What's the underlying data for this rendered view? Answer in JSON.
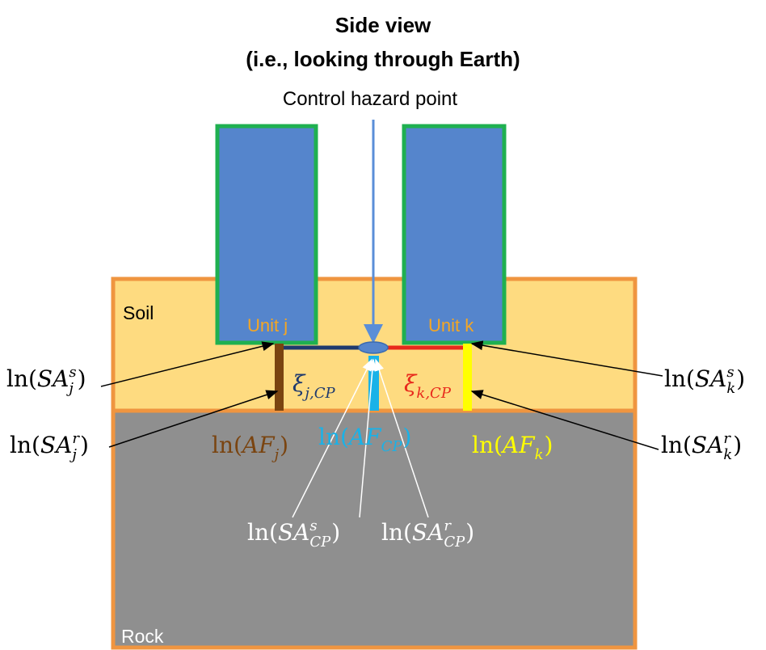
{
  "title": {
    "line1": "Side view",
    "line2": "(i.e., looking through Earth)"
  },
  "control_label": "Control hazard point",
  "layers": {
    "soil": "Soil",
    "rock": "Rock"
  },
  "units": {
    "j": "Unit j",
    "k": "Unit k"
  },
  "math_labels": [
    {
      "fn": "ln(",
      "var": "SA",
      "sub": "j",
      "sup": "s",
      "close": ")"
    },
    {
      "fn": "ln(",
      "var": "SA",
      "sub": "j",
      "sup": "r",
      "close": ")"
    },
    {
      "fn": "ln(",
      "var": "SA",
      "sub": "k",
      "sup": "s",
      "close": ")"
    },
    {
      "fn": "ln(",
      "var": "SA",
      "sub": "k",
      "sup": "r",
      "close": ")"
    },
    {
      "var": "ξ",
      "sub": "j,CP"
    },
    {
      "var": "ξ",
      "sub": "k,CP"
    },
    {
      "fn": "ln(",
      "var": "AF",
      "sub": "j",
      "close": ")"
    },
    {
      "fn": "ln(",
      "var": "AF",
      "sub": "CP",
      "close": ")"
    },
    {
      "fn": "ln(",
      "var": "AF",
      "sub": "k",
      "close": ")"
    },
    {
      "fn": "ln(",
      "var": "SA",
      "sub": "CP",
      "sup": "s",
      "close": ")"
    },
    {
      "fn": "ln(",
      "var": "SA",
      "sub": "CP",
      "sup": "r",
      "close": ")"
    }
  ]
}
